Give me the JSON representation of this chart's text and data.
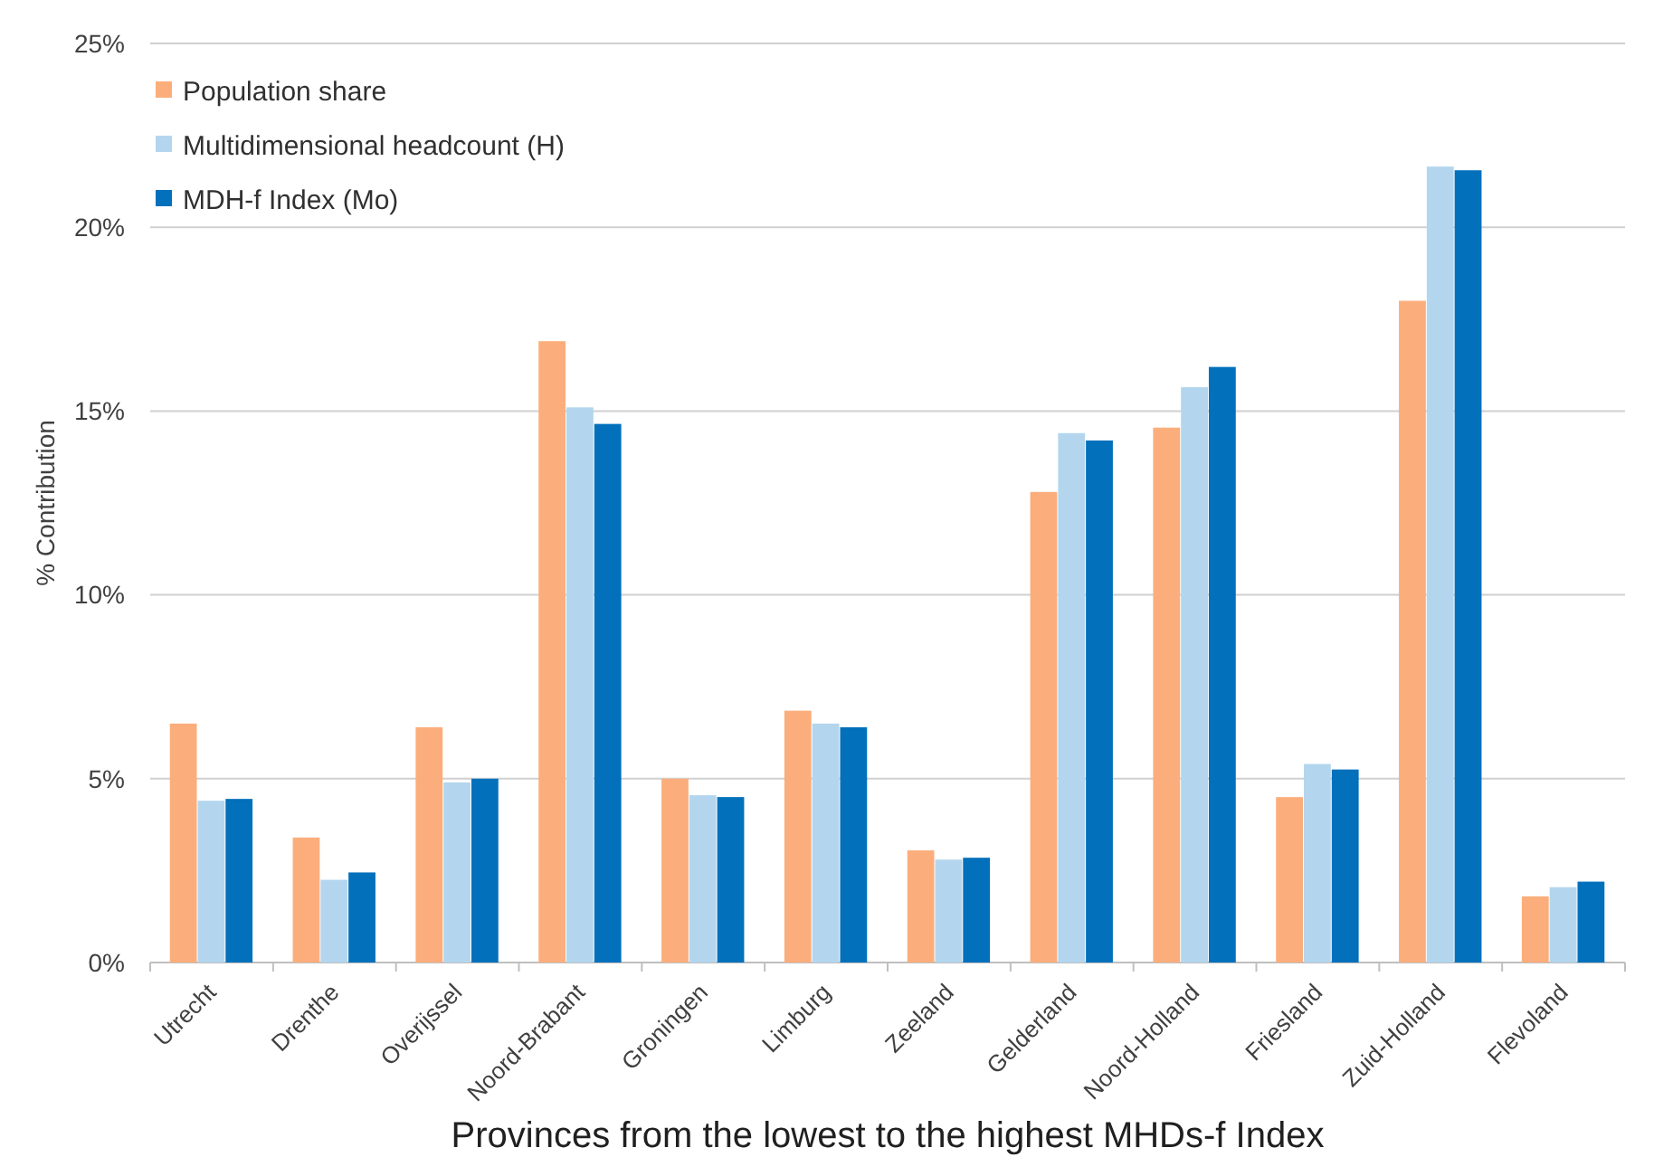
{
  "chart_data": {
    "type": "bar",
    "xlabel": "Provinces from the lowest to the highest MHDs-f Index",
    "ylabel": "% Contribution",
    "categories": [
      "Utrecht",
      "Drenthe",
      "Overijssel",
      "Noord-Brabant",
      "Groningen",
      "Limburg",
      "Zeeland",
      "Gelderland",
      "Noord-Holland",
      "Friesland",
      "Zuid-Holland",
      "Flevoland"
    ],
    "series": [
      {
        "name": "Population share",
        "color": "#fbae7c",
        "values": [
          6.5,
          3.4,
          6.4,
          16.9,
          5.0,
          6.85,
          3.05,
          12.8,
          14.55,
          4.5,
          18.0,
          1.8
        ]
      },
      {
        "name": "Multidimensional headcount (H)",
        "color": "#b3d6ee",
        "values": [
          4.4,
          2.25,
          4.9,
          15.1,
          4.55,
          6.5,
          2.8,
          14.4,
          15.65,
          5.4,
          21.65,
          2.05
        ]
      },
      {
        "name": "MDH-f Index (Mo)",
        "color": "#0270bb",
        "values": [
          4.45,
          2.45,
          5.0,
          14.65,
          4.5,
          6.4,
          2.85,
          14.2,
          16.2,
          5.25,
          21.55,
          2.2
        ]
      }
    ],
    "ylim": [
      0,
      25
    ],
    "yticks": [
      {
        "value": 0,
        "label": "0%"
      },
      {
        "value": 5,
        "label": "5%"
      },
      {
        "value": 10,
        "label": "10%"
      },
      {
        "value": 15,
        "label": "15%"
      },
      {
        "value": 20,
        "label": "20%"
      },
      {
        "value": 25,
        "label": "25%"
      }
    ],
    "grid": "y",
    "legend": "top left"
  }
}
